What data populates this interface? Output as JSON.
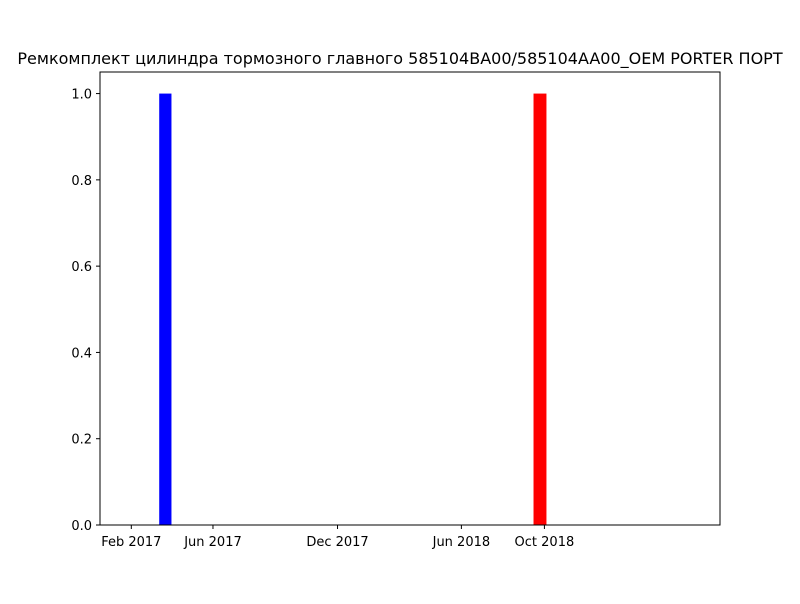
{
  "chart_data": {
    "type": "bar",
    "title": "Ремкомплект цилиндра тормозного главного 585104BA00/585104AA00_OEM PORTER ПОРТ",
    "xlabel": "",
    "ylabel": "",
    "x_type": "date",
    "xlim": [
      "2016-12-17",
      "2019-06-16"
    ],
    "ylim": [
      0,
      1.05
    ],
    "x_ticks": [
      {
        "date": "2017-02-01",
        "label": "Feb 2017"
      },
      {
        "date": "2017-06-01",
        "label": "Jun 2017"
      },
      {
        "date": "2017-12-01",
        "label": "Dec 2017"
      },
      {
        "date": "2018-06-01",
        "label": "Jun 2018"
      },
      {
        "date": "2018-10-01",
        "label": "Oct 2018"
      }
    ],
    "y_ticks": [
      {
        "value": 0.0,
        "label": "0.0"
      },
      {
        "value": 0.2,
        "label": "0.2"
      },
      {
        "value": 0.4,
        "label": "0.4"
      },
      {
        "value": 0.6,
        "label": "0.6"
      },
      {
        "value": 0.8,
        "label": "0.8"
      },
      {
        "value": 1.0,
        "label": "1.0"
      }
    ],
    "bars": [
      {
        "start": "2017-03-14",
        "end": "2017-04-01",
        "value": 1,
        "color": "#0000ff"
      },
      {
        "start": "2018-09-15",
        "end": "2018-10-04",
        "value": 1,
        "color": "#ff0000"
      }
    ],
    "grid": false
  }
}
